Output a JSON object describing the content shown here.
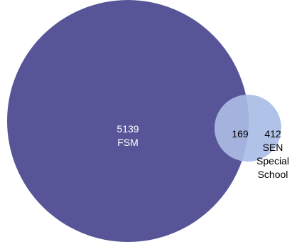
{
  "chart_data": {
    "type": "venn",
    "sets": [
      {
        "id": "fsm",
        "only_count": "5139",
        "name": "FSM",
        "color": "#575597"
      },
      {
        "id": "sen",
        "only_count": "412",
        "name_lines": [
          "SEN",
          "Special",
          "School"
        ],
        "color": "#b0c2e8"
      }
    ],
    "intersection": {
      "count": "169",
      "color": "#a4b2de"
    }
  }
}
